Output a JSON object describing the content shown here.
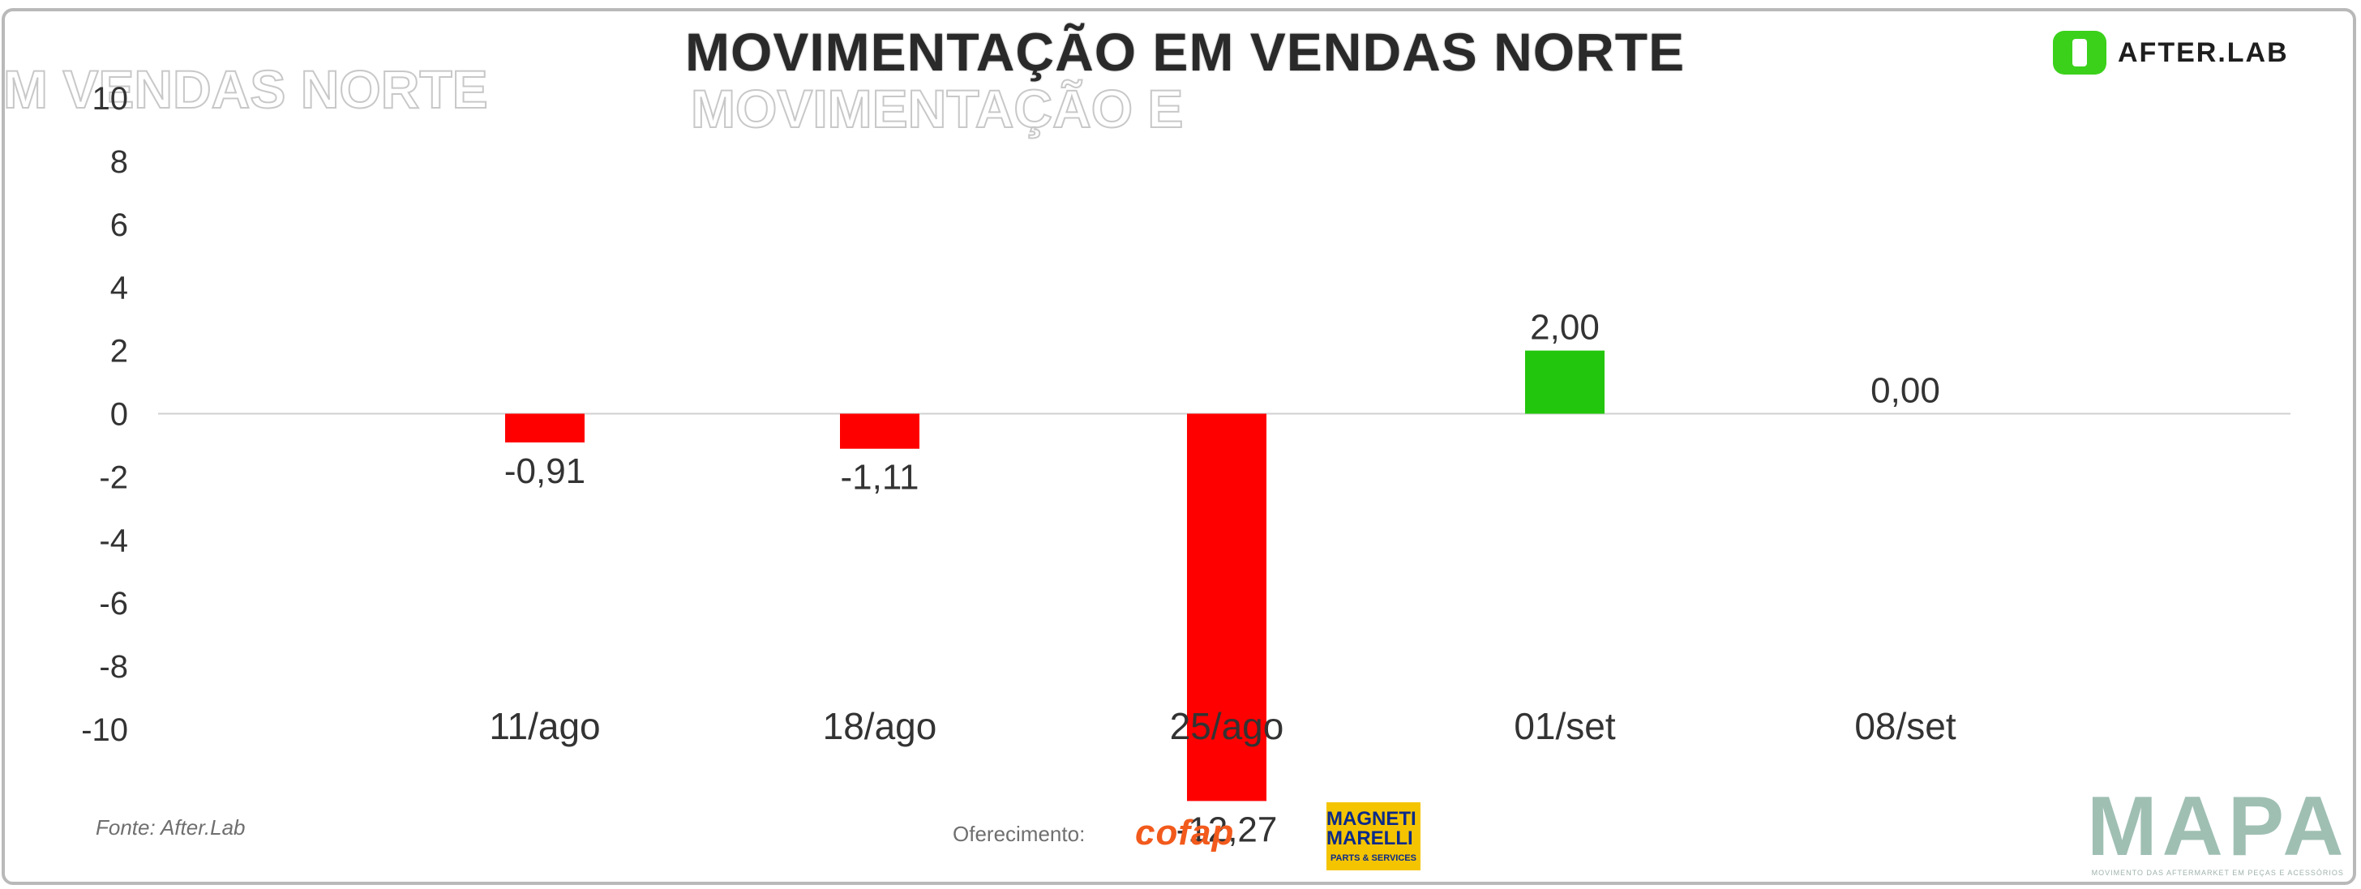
{
  "header": {
    "title": "MOVIMENTAÇÃO EM VENDAS NORTE",
    "ghost_left": "M VENDAS NORTE",
    "ghost_center": "MOVIMENTAÇÃO E",
    "logo_text": "AFTER.LAB"
  },
  "footer": {
    "source": "Fonte: After.Lab",
    "sponsor_label": "Oferecimento:",
    "cofap": "cofap",
    "magneti_line1": "MAGNETI MARELLI",
    "magneti_line2": "PARTS & SERVICES",
    "mapa": "MAPA",
    "mapa_tagline": "MOVIMENTO DAS AFTERMARKET EM PEÇAS E ACESSÓRIOS"
  },
  "colors": {
    "negative": "#ff0000",
    "positive": "#22c60c",
    "axis_line": "#d0d0d0",
    "text": "#333333"
  },
  "chart_data": {
    "type": "bar",
    "title": "MOVIMENTAÇÃO EM VENDAS NORTE",
    "categories": [
      "11/ago",
      "18/ago",
      "25/ago",
      "01/set",
      "08/set"
    ],
    "values": [
      -0.91,
      -1.11,
      -12.27,
      2.0,
      0.0
    ],
    "data_labels": [
      "-0,91",
      "-1,11",
      "-12,27",
      "2,00",
      "0,00"
    ],
    "y_ticks": [
      "10",
      "8",
      "6",
      "4",
      "2",
      "0",
      "-2",
      "-4",
      "-6",
      "-8",
      "-10"
    ],
    "ylim": [
      -10,
      10
    ],
    "grid": false,
    "legend": "none"
  }
}
